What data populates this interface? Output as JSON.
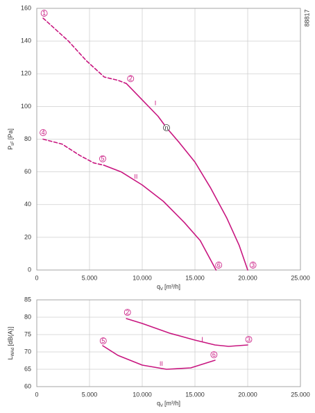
{
  "chart_data": [
    {
      "type": "line",
      "side_note": "88817",
      "xlabel": {
        "main": "q",
        "sub": "V",
        "unit": "[m³/h]"
      },
      "ylabel": {
        "main": "P",
        "sub": "sF",
        "unit": "[Pa]"
      },
      "xlim": [
        0,
        25000
      ],
      "ylim": [
        0,
        160
      ],
      "xticks": [
        0,
        {
          "value": 5000,
          "label": "5.000"
        },
        {
          "value": 10000,
          "label": "10.000"
        },
        {
          "value": 15000,
          "label": "15.000"
        },
        {
          "value": 20000,
          "label": "20.000"
        },
        {
          "value": 25000,
          "label": "25.000"
        }
      ],
      "yticks": [
        0,
        20,
        40,
        60,
        80,
        100,
        120,
        140,
        160
      ],
      "grid": true,
      "series": [
        {
          "color": "#c8157f",
          "dashed": true,
          "x": [
            600,
            3000,
            4700,
            6400,
            7700,
            8500
          ],
          "values": [
            154,
            140,
            128,
            118,
            116,
            114
          ]
        },
        {
          "color": "#c8157f",
          "dashed": false,
          "x": [
            8500,
            10000,
            11500,
            12300,
            13500,
            15000,
            16500,
            18000,
            19200,
            20000
          ],
          "values": [
            114,
            104,
            94,
            87,
            78,
            66,
            50,
            32,
            15,
            0
          ]
        },
        {
          "color": "#c8157f",
          "dashed": true,
          "x": [
            600,
            2400,
            4100,
            5400,
            6400
          ],
          "values": [
            80,
            77,
            70,
            65.5,
            64
          ]
        },
        {
          "color": "#c8157f",
          "dashed": false,
          "x": [
            6400,
            8000,
            10000,
            12000,
            14000,
            15500,
            17000
          ],
          "values": [
            64,
            60,
            52,
            42,
            29,
            18,
            0
          ]
        }
      ],
      "annotations": [
        {
          "text": "1",
          "x": 700,
          "y": 157,
          "circled": true
        },
        {
          "text": "2",
          "x": 8900,
          "y": 117,
          "circled": true
        },
        {
          "text": "n",
          "x": 12300,
          "y": 87,
          "circled": true
        },
        {
          "text": "3",
          "x": 20500,
          "y": 3,
          "circled": true
        },
        {
          "text": "4",
          "x": 600,
          "y": 84,
          "circled": true
        },
        {
          "text": "5",
          "x": 6250,
          "y": 68,
          "circled": true
        },
        {
          "text": "6",
          "x": 17250,
          "y": 3,
          "circled": true
        },
        {
          "text": "I",
          "x": 11250,
          "y": 102,
          "circled": false
        },
        {
          "text": "II",
          "x": 9400,
          "y": 57,
          "circled": false
        }
      ]
    },
    {
      "type": "line",
      "xlabel": {
        "main": "q",
        "sub": "V",
        "unit": "[m³/h]"
      },
      "ylabel": {
        "main": "L",
        "sub": "WAd",
        "unit": "[dB(A)]"
      },
      "xlim": [
        0,
        25000
      ],
      "ylim": [
        60,
        85
      ],
      "xticks": [
        0,
        {
          "value": 5000,
          "label": "5.000"
        },
        {
          "value": 10000,
          "label": "10.000"
        },
        {
          "value": 15000,
          "label": "15.000"
        },
        {
          "value": 20000,
          "label": "20.000"
        },
        {
          "value": 25000,
          "label": "25.000"
        }
      ],
      "yticks": [
        60,
        65,
        70,
        75,
        80,
        85
      ],
      "grid": true,
      "series": [
        {
          "color": "#c8157f",
          "dashed": false,
          "x": [
            8500,
            10000,
            12600,
            15000,
            16900,
            18200,
            20000
          ],
          "values": [
            79.6,
            78.2,
            75.4,
            73.4,
            72,
            71.6,
            72
          ]
        },
        {
          "color": "#c8157f",
          "dashed": false,
          "x": [
            6250,
            7700,
            10000,
            12300,
            14600,
            16900
          ],
          "values": [
            71.8,
            69,
            66.2,
            65,
            65.4,
            67.6
          ]
        }
      ],
      "annotations": [
        {
          "text": "2",
          "x": 8600,
          "y": 81.4,
          "circled": true
        },
        {
          "text": "3",
          "x": 20100,
          "y": 73.6,
          "circled": true
        },
        {
          "text": "5",
          "x": 6300,
          "y": 73.2,
          "circled": true
        },
        {
          "text": "6",
          "x": 16800,
          "y": 69.2,
          "circled": true
        },
        {
          "text": "I",
          "x": 15700,
          "y": 73.6,
          "circled": false
        },
        {
          "text": "II",
          "x": 11800,
          "y": 66.6,
          "circled": false
        }
      ]
    }
  ]
}
